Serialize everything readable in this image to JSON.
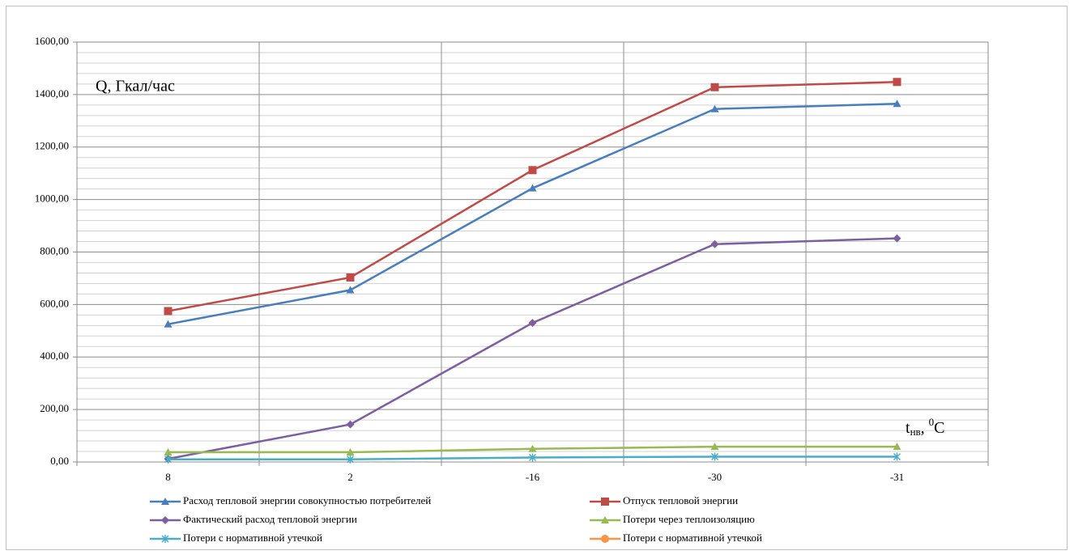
{
  "chart_data": {
    "type": "line",
    "y_label": "Q, Гкал/час",
    "x_label": {
      "base": "t",
      "subscript": "нв",
      "separator": ", ",
      "superscript": "0",
      "unit": "C"
    },
    "categories": [
      "8",
      "2",
      "-16",
      "-30",
      "-31"
    ],
    "series": [
      {
        "name": "Расход тепловой энергии совокупностью потребителей",
        "color": "#4a7ebb",
        "marker": "triangle",
        "values": [
          525,
          655,
          1043,
          1345,
          1365
        ]
      },
      {
        "name": "Отпуск тепловой энергии",
        "color": "#be4b48",
        "marker": "square",
        "values": [
          575,
          703,
          1112,
          1428,
          1448
        ]
      },
      {
        "name": "Фактический расход тепловой энергии",
        "color": "#7d5fa0",
        "marker": "diamond",
        "values": [
          12,
          143,
          530,
          830,
          852
        ]
      },
      {
        "name": "Потери через теплоизоляцию",
        "color": "#98b954",
        "marker": "triangle",
        "values": [
          37,
          37,
          50,
          58,
          58
        ]
      },
      {
        "name": "Потери с нормативной утечкой",
        "color": "#4bacc6",
        "marker": "star",
        "values": [
          10,
          10,
          17,
          20,
          20
        ]
      },
      {
        "name": "Потери с нормативной утечкой",
        "color": "#f79646",
        "marker": "circle",
        "values": [
          null,
          null,
          null,
          null,
          null
        ]
      }
    ],
    "ylim": [
      0,
      1600
    ],
    "yticks": [
      {
        "value": 0,
        "label": "0,00"
      },
      {
        "value": 200,
        "label": "200,00"
      },
      {
        "value": 400,
        "label": "400,00"
      },
      {
        "value": 600,
        "label": "600,00"
      },
      {
        "value": 800,
        "label": "800,00"
      },
      {
        "value": 1000,
        "label": "1000,00"
      },
      {
        "value": 1200,
        "label": "1200,00"
      },
      {
        "value": 1400,
        "label": "1400,00"
      },
      {
        "value": 1600,
        "label": "1600,00"
      }
    ],
    "grid": true
  }
}
